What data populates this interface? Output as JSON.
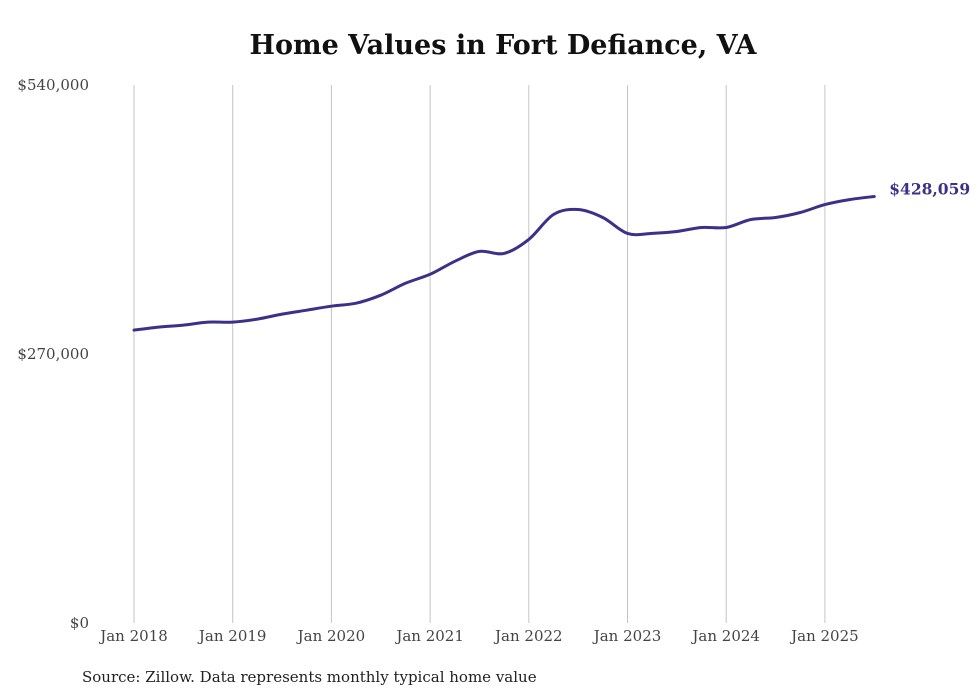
{
  "chart_data": {
    "type": "line",
    "title": "Home Values in Fort Defiance, VA",
    "source": "Source: Zillow. Data represents monthly typical home value",
    "xlabel": "",
    "ylabel": "",
    "x_ticks": [
      "Jan 2018",
      "Jan 2019",
      "Jan 2020",
      "Jan 2021",
      "Jan 2022",
      "Jan 2023",
      "Jan 2024",
      "Jan 2025"
    ],
    "y_ticks": [
      "$0",
      "$270,000",
      "$540,000"
    ],
    "ylim": [
      0,
      540000
    ],
    "grid": "vertical",
    "line_color": "#3b3189",
    "end_label": "$428,059",
    "series": [
      {
        "points": [
          [
            "2018-01",
            294000
          ],
          [
            "2018-04",
            297000
          ],
          [
            "2018-07",
            299000
          ],
          [
            "2018-10",
            302000
          ],
          [
            "2019-01",
            302000
          ],
          [
            "2019-04",
            305000
          ],
          [
            "2019-07",
            310000
          ],
          [
            "2019-10",
            314000
          ],
          [
            "2020-01",
            318000
          ],
          [
            "2020-04",
            321000
          ],
          [
            "2020-07",
            329000
          ],
          [
            "2020-10",
            341000
          ],
          [
            "2021-01",
            350000
          ],
          [
            "2021-04",
            363000
          ],
          [
            "2021-07",
            373000
          ],
          [
            "2021-10",
            371000
          ],
          [
            "2022-01",
            385000
          ],
          [
            "2022-04",
            410000
          ],
          [
            "2022-07",
            415000
          ],
          [
            "2022-10",
            407000
          ],
          [
            "2023-01",
            391000
          ],
          [
            "2023-04",
            391000
          ],
          [
            "2023-07",
            393000
          ],
          [
            "2023-10",
            397000
          ],
          [
            "2024-01",
            397000
          ],
          [
            "2024-04",
            405000
          ],
          [
            "2024-07",
            407000
          ],
          [
            "2024-10",
            412000
          ],
          [
            "2025-01",
            420000
          ],
          [
            "2025-04",
            425000
          ],
          [
            "2025-07",
            428059
          ]
        ]
      }
    ]
  }
}
